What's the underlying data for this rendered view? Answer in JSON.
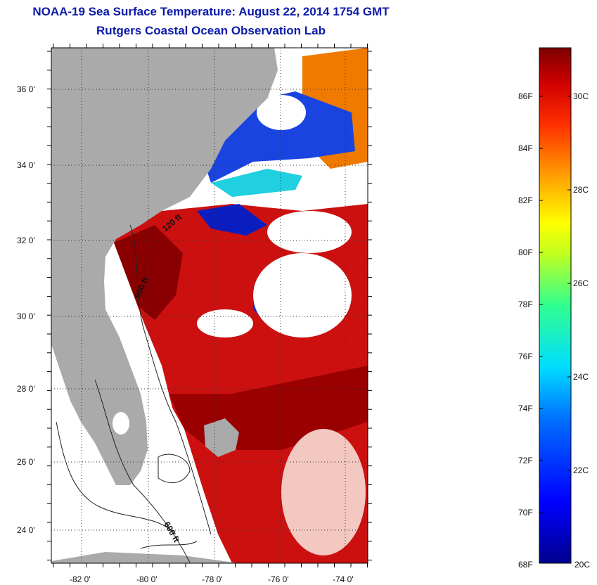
{
  "header": {
    "title": "NOAA-19 Sea Surface Temperature:  August 22, 2014 1754 GMT",
    "subtitle": "Rutgers Coastal Ocean Observation Lab"
  },
  "map": {
    "lat_labels": [
      "36 0'",
      "34 0'",
      "32 0'",
      "30 0'",
      "28 0'",
      "26 0'",
      "24 0'"
    ],
    "lon_labels": [
      "-82 0'",
      "-80 0'",
      "-78 0'",
      "-76 0'",
      "-74 0'"
    ],
    "isobath_labels": [
      "120 ft",
      "600 ft",
      "600 ft"
    ],
    "land_color": "#aaaaaa",
    "cloud_color": "#ffffff"
  },
  "colorbar": {
    "fahrenheit_labels": [
      "86F",
      "84F",
      "82F",
      "80F",
      "78F",
      "76F",
      "74F",
      "72F",
      "70F",
      "68F"
    ],
    "celsius_labels": [
      "30C",
      "28C",
      "26C",
      "24C",
      "22C",
      "20C"
    ],
    "range_f": [
      68,
      87.8
    ],
    "range_c": [
      20,
      31
    ]
  }
}
